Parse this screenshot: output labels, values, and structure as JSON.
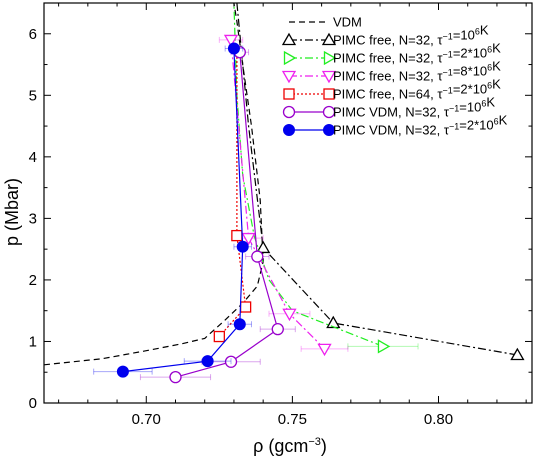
{
  "chart_data": {
    "type": "line",
    "xlabel_base": "ρ (gcm",
    "xlabel_sup": "−3",
    "xlabel_tail": ")",
    "ylabel": "p (Mbar)",
    "xlim": [
      0.665,
      0.832
    ],
    "ylim": [
      0,
      6.5
    ],
    "xticks": [
      0.7,
      0.75,
      0.8
    ],
    "xtick_labels": [
      "0.70",
      "0.75",
      "0.80"
    ],
    "yticks": [
      0,
      1,
      2,
      3,
      4,
      5,
      6
    ],
    "ytick_labels": [
      "0",
      "1",
      "2",
      "3",
      "4",
      "5",
      "6"
    ],
    "grid": false,
    "legend_position": "top-right",
    "series": [
      {
        "name": "VDM",
        "legend": [
          {
            "t": "VDM"
          }
        ],
        "color": "#000000",
        "dash": "6,4",
        "marker": "none",
        "x": [
          0.665,
          0.685,
          0.7,
          0.712,
          0.72,
          0.727,
          0.733,
          0.738,
          0.74,
          0.739,
          0.736,
          0.733,
          0.731,
          0.73
        ],
        "y": [
          0.62,
          0.72,
          0.85,
          0.96,
          1.05,
          1.35,
          1.62,
          1.9,
          2.3,
          3.3,
          4.5,
          5.5,
          6.2,
          6.5
        ]
      },
      {
        "name": "PIMC free, N=32, τ⁻¹=10⁶K",
        "legend": [
          {
            "t": "PIMC free, N=32, τ"
          },
          {
            "t": "−1",
            "sup": true
          },
          {
            "t": "=10"
          },
          {
            "t": "6",
            "sup": true
          },
          {
            "t": "K"
          }
        ],
        "color": "#000000",
        "dash": "8,3,2,3",
        "marker": "triangle-up",
        "x": [
          0.827,
          0.764,
          0.74,
          0.735,
          0.731
        ],
        "y": [
          0.78,
          1.3,
          2.52,
          4.5,
          6.5
        ],
        "markers_x": [
          0.827,
          0.764,
          0.74
        ],
        "markers_y": [
          0.78,
          1.3,
          2.52
        ]
      },
      {
        "name": "PIMC free, N=32, τ⁻¹=2*10⁶K",
        "legend": [
          {
            "t": "PIMC free, N=32, τ"
          },
          {
            "t": "−1",
            "sup": true
          },
          {
            "t": "=2*10"
          },
          {
            "t": "6",
            "sup": true
          },
          {
            "t": "K"
          }
        ],
        "color": "#22ee22",
        "dash": "8,3,2,3",
        "marker": "triangle-right",
        "x": [
          0.781,
          0.75,
          0.742,
          0.737,
          0.733,
          0.731,
          0.73
        ],
        "y": [
          0.92,
          1.5,
          2.0,
          2.7,
          3.7,
          5.0,
          6.5
        ],
        "markers_x": [
          0.781
        ],
        "markers_y": [
          0.92
        ],
        "xerr": [
          0.012
        ]
      },
      {
        "name": "PIMC free, N=32, τ⁻¹=8*10⁶K",
        "legend": [
          {
            "t": "PIMC free, N=32, τ"
          },
          {
            "t": "−1",
            "sup": true
          },
          {
            "t": "=8*10"
          },
          {
            "t": "6",
            "sup": true
          },
          {
            "t": "K"
          }
        ],
        "color": "#ee22ee",
        "dash": "8,3,2,3",
        "marker": "triangle-down",
        "x": [
          0.761,
          0.749,
          0.735,
          0.729
        ],
        "y": [
          0.88,
          1.45,
          2.68,
          5.9
        ],
        "markers_x": [
          0.761,
          0.749,
          0.735,
          0.729
        ],
        "markers_y": [
          0.88,
          1.45,
          2.68,
          5.9
        ],
        "xerr": [
          0.008,
          0.007,
          0.005,
          0.004
        ]
      },
      {
        "name": "PIMC free, N=64, τ⁻¹=2*10⁶K",
        "legend": [
          {
            "t": "PIMC free, N=64, τ"
          },
          {
            "t": "−1",
            "sup": true
          },
          {
            "t": "=2*10"
          },
          {
            "t": "6",
            "sup": true
          },
          {
            "t": "K"
          }
        ],
        "color": "#ee0000",
        "dash": "2,2",
        "marker": "square",
        "x": [
          0.725,
          0.734,
          0.731,
          0.731
        ],
        "y": [
          1.08,
          1.56,
          2.72,
          5.78
        ],
        "markers_x": [
          0.725,
          0.734,
          0.731
        ],
        "markers_y": [
          1.08,
          1.56,
          2.72
        ]
      },
      {
        "name": "PIMC VDM, N=32, τ⁻¹=10⁶K",
        "legend": [
          {
            "t": "PIMC VDM, N=32, τ"
          },
          {
            "t": "−1",
            "sup": true
          },
          {
            "t": "=10"
          },
          {
            "t": "6",
            "sup": true
          },
          {
            "t": "K"
          }
        ],
        "color": "#9900cc",
        "dash": "",
        "marker": "circle-open",
        "x": [
          0.71,
          0.729,
          0.745,
          0.738,
          0.732
        ],
        "y": [
          0.42,
          0.67,
          1.2,
          2.38,
          5.7
        ],
        "markers_x": [
          0.71,
          0.729,
          0.745,
          0.738,
          0.732
        ],
        "markers_y": [
          0.42,
          0.67,
          1.2,
          2.38,
          5.7
        ],
        "xerr": [
          0.012,
          0.01,
          0.006,
          0.004,
          0.003
        ]
      },
      {
        "name": "PIMC VDM, N=32, τ⁻¹=2*10⁶K",
        "legend": [
          {
            "t": "PIMC VDM, N=32, τ"
          },
          {
            "t": "−1",
            "sup": true
          },
          {
            "t": "=2*10"
          },
          {
            "t": "6",
            "sup": true
          },
          {
            "t": "K"
          }
        ],
        "color": "#0000ee",
        "dash": "",
        "marker": "circle-filled",
        "x": [
          0.692,
          0.721,
          0.732,
          0.733,
          0.73
        ],
        "y": [
          0.51,
          0.68,
          1.28,
          2.54,
          5.76
        ],
        "markers_x": [
          0.692,
          0.721,
          0.732,
          0.733,
          0.73
        ],
        "markers_y": [
          0.51,
          0.68,
          1.28,
          2.54,
          5.76
        ],
        "xerr": [
          0.01,
          0.008,
          0.004,
          0.003,
          0.003
        ]
      }
    ]
  }
}
